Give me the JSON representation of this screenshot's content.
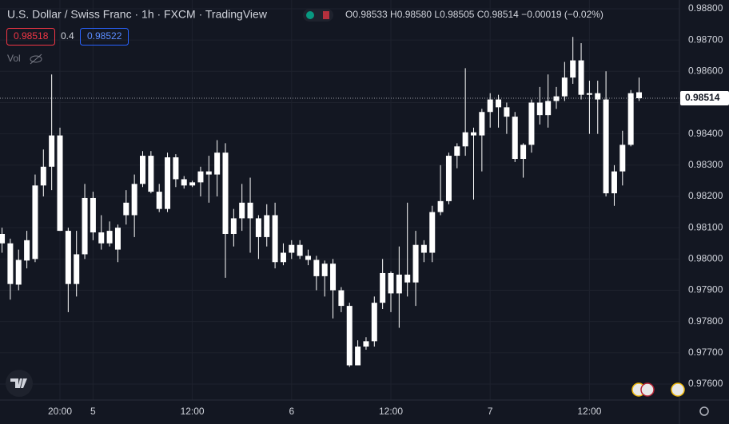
{
  "chart_data": {
    "type": "candlestick",
    "title": "U.S. Dollar / Swiss Franc · 1h · FXCM · TradingView",
    "ohlc_legend": "O0.98533 H0.98580 L0.98505 C0.98514 −0.00019 (−0.02%)",
    "bid": "0.98518",
    "spread": "0.4",
    "ask": "0.98522",
    "volume_label": "Vol",
    "color": "#ffffff",
    "grid": true,
    "categories": [
      null,
      null,
      null,
      null,
      null,
      null,
      null,
      "20:00",
      null,
      null,
      null,
      "5",
      null,
      null,
      null,
      null,
      null,
      null,
      null,
      null,
      null,
      null,
      null,
      "12:00",
      null,
      null,
      null,
      null,
      null,
      null,
      null,
      null,
      null,
      null,
      null,
      "6",
      null,
      null,
      null,
      null,
      null,
      null,
      null,
      null,
      null,
      null,
      null,
      "12:00",
      null,
      null,
      null,
      null,
      null,
      null,
      null,
      null,
      null,
      null,
      null,
      "7",
      null,
      null,
      null,
      null,
      null,
      null,
      null,
      null,
      null,
      null,
      null,
      "12:00",
      null,
      null,
      null,
      null,
      null,
      null
    ],
    "open": [
      0.9808,
      0.9805,
      0.97918,
      0.97995,
      0.98,
      0.98235,
      0.98295,
      0.98395,
      0.9809,
      0.9792,
      0.98015,
      0.98195,
      0.98085,
      0.9805,
      0.981,
      0.9814,
      0.9814,
      0.9824,
      0.9833,
      0.98215,
      0.9816,
      0.98325,
      0.98255,
      0.98235,
      0.98245,
      0.9828,
      0.9827,
      0.9834,
      0.9808,
      0.9813,
      0.9818,
      0.9813,
      0.9807,
      0.9814,
      0.9799,
      0.9802,
      0.98045,
      0.9801,
      0.97997,
      0.97945,
      0.97985,
      0.979,
      0.9785,
      0.9766,
      0.9772,
      0.97737,
      0.9786,
      0.97955,
      0.9789,
      0.9795,
      0.97925,
      0.98045,
      0.9802,
      0.9815,
      0.98185,
      0.9833,
      0.9836,
      0.98405,
      0.98395,
      0.9847,
      0.9851,
      0.98485,
      0.98455,
      0.9832,
      0.98365,
      0.985,
      0.9846,
      0.98505,
      0.9852,
      0.9858,
      0.98635,
      0.98525,
      0.9853,
      0.9851,
      0.9821,
      0.9828,
      0.98365,
      0.98533
    ],
    "high": [
      0.981,
      0.98065,
      0.9803,
      0.9809,
      0.9827,
      0.9835,
      0.9859,
      0.9842,
      0.981,
      0.9809,
      0.9824,
      0.98215,
      0.9814,
      0.9812,
      0.9811,
      0.9822,
      0.9827,
      0.98345,
      0.98345,
      0.9824,
      0.9834,
      0.98335,
      0.98265,
      0.9825,
      0.98295,
      0.9833,
      0.9838,
      0.9837,
      0.9816,
      0.9824,
      0.9826,
      0.9814,
      0.98175,
      0.9818,
      0.9805,
      0.9806,
      0.9806,
      0.9803,
      0.9801,
      0.97995,
      0.98,
      0.9791,
      0.9786,
      0.9774,
      0.9775,
      0.9788,
      0.98,
      0.9796,
      0.9804,
      0.9818,
      0.9809,
      0.9806,
      0.9817,
      0.983,
      0.9834,
      0.9837,
      0.9861,
      0.9842,
      0.9848,
      0.9853,
      0.98525,
      0.985,
      0.9847,
      0.9837,
      0.9851,
      0.9855,
      0.9859,
      0.9855,
      0.9863,
      0.9871,
      0.9869,
      0.9857,
      0.9857,
      0.986,
      0.983,
      0.9841,
      0.9854,
      0.9858
    ],
    "low": [
      0.9802,
      0.9787,
      0.979,
      0.9797,
      0.9799,
      0.982,
      0.9822,
      0.9809,
      0.9783,
      0.9788,
      0.98,
      0.9806,
      0.9803,
      0.9804,
      0.9799,
      0.9811,
      0.9807,
      0.9823,
      0.9821,
      0.9815,
      0.9815,
      0.9823,
      0.98225,
      0.9823,
      0.982,
      0.9818,
      0.982,
      0.9794,
      0.9804,
      0.9809,
      0.9802,
      0.98,
      0.9804,
      0.9797,
      0.9798,
      0.98,
      0.98,
      0.9798,
      0.979,
      0.9788,
      0.9781,
      0.9783,
      0.97655,
      0.9766,
      0.9771,
      0.9772,
      0.9784,
      0.9783,
      0.9778,
      0.9788,
      0.9785,
      0.9799,
      0.9799,
      0.9814,
      0.98175,
      0.9829,
      0.9833,
      0.9819,
      0.9828,
      0.9842,
      0.9842,
      0.984,
      0.9831,
      0.9826,
      0.9834,
      0.9843,
      0.9842,
      0.9848,
      0.98505,
      0.9856,
      0.9851,
      0.984,
      0.984,
      0.982,
      0.9817,
      0.98235,
      0.9836,
      0.98505
    ],
    "close": [
      0.9805,
      0.9792,
      0.97997,
      0.9806,
      0.98235,
      0.98295,
      0.98395,
      0.9809,
      0.9792,
      0.98015,
      0.98195,
      0.98085,
      0.9805,
      0.9809,
      0.9803,
      0.9818,
      0.9824,
      0.9833,
      0.98215,
      0.9816,
      0.98325,
      0.98255,
      0.98235,
      0.98245,
      0.9828,
      0.9827,
      0.9834,
      0.9808,
      0.9813,
      0.9818,
      0.9813,
      0.9807,
      0.9814,
      0.9799,
      0.9802,
      0.98045,
      0.9801,
      0.97997,
      0.97945,
      0.97985,
      0.979,
      0.9785,
      0.9766,
      0.9772,
      0.97737,
      0.9786,
      0.97955,
      0.9789,
      0.9795,
      0.97925,
      0.98045,
      0.9802,
      0.9815,
      0.98185,
      0.9833,
      0.9836,
      0.98405,
      0.98395,
      0.9847,
      0.9851,
      0.98485,
      0.98455,
      0.9832,
      0.98365,
      0.985,
      0.9846,
      0.98505,
      0.9852,
      0.9858,
      0.98635,
      0.98525,
      0.9853,
      0.9851,
      0.9821,
      0.9828,
      0.98365,
      0.9853,
      0.98514
    ],
    "ylim": [
      0.97549,
      0.98828
    ],
    "yticks": [
      {
        "value": 0.976,
        "label": "0.97600"
      },
      {
        "value": 0.977,
        "label": "0.97700"
      },
      {
        "value": 0.978,
        "label": "0.97800"
      },
      {
        "value": 0.979,
        "label": "0.97900"
      },
      {
        "value": 0.98,
        "label": "0.98000"
      },
      {
        "value": 0.981,
        "label": "0.98100"
      },
      {
        "value": 0.982,
        "label": "0.98200"
      },
      {
        "value": 0.983,
        "label": "0.98300"
      },
      {
        "value": 0.984,
        "label": "0.98400"
      },
      {
        "value": 0.985,
        "label": "0.98500"
      },
      {
        "value": 0.986,
        "label": "0.98600"
      },
      {
        "value": 0.987,
        "label": "0.98700"
      },
      {
        "value": 0.988,
        "label": "0.98800"
      }
    ]
  }
}
